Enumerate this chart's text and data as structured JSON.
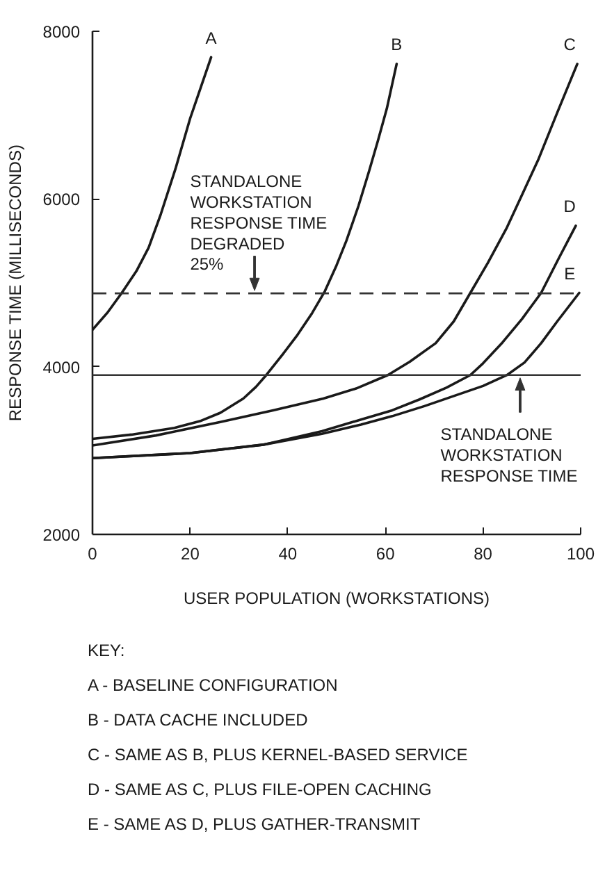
{
  "chart_data": {
    "type": "line",
    "xlabel": "USER POPULATION (WORKSTATIONS)",
    "ylabel": "RESPONSE TIME (MILLISECONDS)",
    "xlim": [
      0,
      100
    ],
    "ylim": [
      2000,
      8000
    ],
    "xticks": [
      0,
      20,
      40,
      60,
      80,
      100
    ],
    "yticks": [
      2000,
      4000,
      6000,
      8000
    ],
    "grid": false,
    "series": [
      {
        "name": "A",
        "color": "#1a1a1a",
        "x": [
          0,
          3,
          6,
          9,
          11.5,
          14,
          17,
          20,
          22.3,
          24.3
        ],
        "values": [
          4440,
          4640,
          4880,
          5140,
          5420,
          5820,
          6360,
          6960,
          7350,
          7690
        ]
      },
      {
        "name": "B",
        "color": "#1a1a1a",
        "x": [
          0,
          8,
          16.8,
          22,
          26.2,
          30.9,
          33.5,
          35.6,
          39,
          42,
          45,
          47.6,
          50,
          52,
          54.5,
          56.7,
          58.5,
          60.3,
          62.3
        ],
        "values": [
          3140,
          3190,
          3270,
          3350,
          3450,
          3620,
          3760,
          3900,
          4150,
          4380,
          4640,
          4900,
          5210,
          5500,
          5920,
          6340,
          6700,
          7080,
          7610
        ]
      },
      {
        "name": "C",
        "color": "#1a1a1a",
        "x": [
          0,
          13,
          26.2,
          37,
          47.3,
          54,
          60.5,
          65,
          70.3,
          74,
          77.4,
          81,
          84.9,
          88,
          91.4,
          95.2,
          99.3
        ],
        "values": [
          3060,
          3180,
          3340,
          3480,
          3620,
          3740,
          3900,
          4060,
          4280,
          4540,
          4880,
          5240,
          5660,
          6050,
          6480,
          7030,
          7610
        ]
      },
      {
        "name": "D",
        "color": "#1a1a1a",
        "x": [
          0,
          20,
          35,
          47,
          55,
          61.4,
          67,
          72.5,
          77.4,
          80,
          84,
          88,
          91.9,
          95.4,
          99
        ],
        "values": [
          2910,
          2970,
          3070,
          3230,
          3370,
          3480,
          3610,
          3750,
          3900,
          4040,
          4290,
          4570,
          4880,
          5280,
          5680
        ]
      },
      {
        "name": "E",
        "color": "#1a1a1a",
        "x": [
          0,
          20,
          35,
          47,
          55,
          61.4,
          68,
          74,
          80,
          84.9,
          88.5,
          91.9,
          95.2,
          99.7
        ],
        "values": [
          2910,
          2970,
          3070,
          3200,
          3310,
          3410,
          3530,
          3650,
          3770,
          3900,
          4050,
          4280,
          4540,
          4880
        ]
      }
    ],
    "ref_lines": [
      {
        "axis": "y",
        "value": 4875,
        "label": "STANDALONE\nWORKSTATION\nRESPONSE TIME\nDEGRADED\n25%",
        "line_style": "dashed",
        "color": "#333333"
      },
      {
        "axis": "y",
        "value": 3900,
        "label": "STANDALONE\nWORKSTATION\nRESPONSE TIME",
        "line_style": "solid",
        "color": "#333333"
      }
    ],
    "annotations": [
      "KEY:",
      "A - BASELINE CONFIGURATION",
      "B - DATA CACHE INCLUDED",
      "C - SAME AS B, PLUS KERNEL-BASED SERVICE",
      "D - SAME AS C, PLUS FILE-OPEN CACHING",
      "E - SAME AS D, PLUS GATHER-TRANSMIT"
    ]
  }
}
